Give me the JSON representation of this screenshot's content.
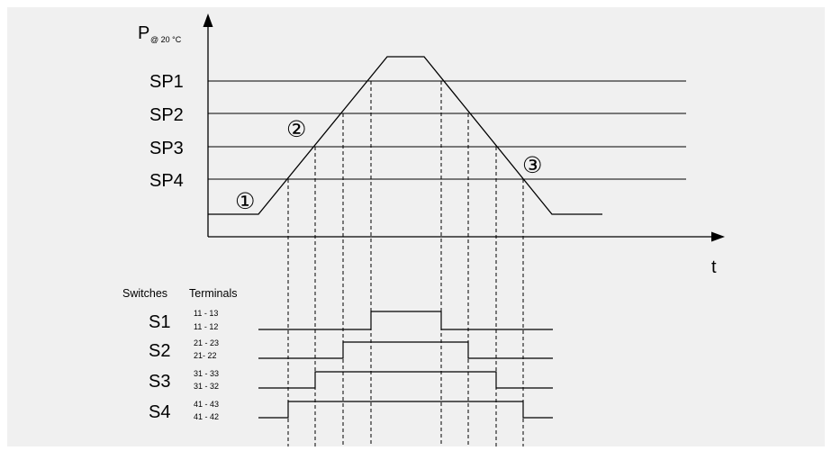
{
  "colors": {
    "background": "#f0f0f0",
    "line": "#000000"
  },
  "y_axis": {
    "label_main": "P",
    "label_sub": "@ 20 °C"
  },
  "x_axis": {
    "label": "t"
  },
  "setpoints": [
    {
      "label": "SP1"
    },
    {
      "label": "SP2"
    },
    {
      "label": "SP3"
    },
    {
      "label": "SP4"
    }
  ],
  "markers": [
    {
      "symbol": "①"
    },
    {
      "symbol": "②"
    },
    {
      "symbol": "③"
    }
  ],
  "switch_table": {
    "col_switches": "Switches",
    "col_terminals": "Terminals",
    "rows": [
      {
        "name": "S1",
        "term_top": "11 - 13",
        "term_bottom": "11 - 12"
      },
      {
        "name": "S2",
        "term_top": "21 - 23",
        "term_bottom": "21- 22"
      },
      {
        "name": "S3",
        "term_top": "31 - 33",
        "term_bottom": "31 - 32"
      },
      {
        "name": "S4",
        "term_top": "41 - 43",
        "term_bottom": "41 - 42"
      }
    ]
  }
}
